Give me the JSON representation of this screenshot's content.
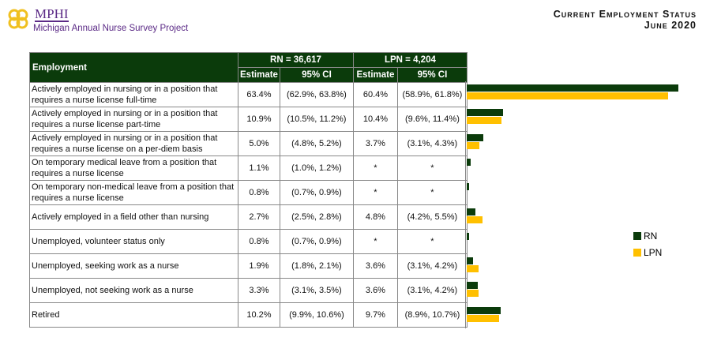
{
  "logo": {
    "name": "MPHI",
    "subtitle": "Michigan Annual Nurse Survey Project"
  },
  "title": {
    "line1": "Current Employment Status",
    "line2": "June 2020"
  },
  "table": {
    "col_employment": "Employment",
    "rn_header": "RN =  36,617",
    "lpn_header": "LPN = 4,204",
    "estimate": "Estimate",
    "ci": "95% CI"
  },
  "colors": {
    "RN": "#0b3b0b",
    "LPN": "#ffc000"
  },
  "chart_data": {
    "type": "bar",
    "orientation": "horizontal",
    "categories": [
      "Actively employed in nursing or in a position that requires a nurse license full-time",
      "Actively employed in nursing or in a position that requires a nurse license part-time",
      "Actively employed in nursing or in a position that requires a nurse license on a per-diem basis",
      "On temporary medical leave from a position that requires a nurse license",
      "On temporary non-medical leave from a position that requires a nurse license",
      "Actively employed in a field other than nursing",
      "Unemployed, volunteer status only",
      "Unemployed, seeking work as a nurse",
      "Unemployed, not seeking work as a nurse",
      "Retired"
    ],
    "series": [
      {
        "name": "RN",
        "values": [
          63.4,
          10.9,
          5.0,
          1.1,
          0.8,
          2.7,
          0.8,
          1.9,
          3.3,
          10.2
        ],
        "labels": [
          "63.4%",
          "10.9%",
          "5.0%",
          "1.1%",
          "0.8%",
          "2.7%",
          "0.8%",
          "1.9%",
          "3.3%",
          "10.2%"
        ],
        "ci": [
          "(62.9%, 63.8%)",
          "(10.5%, 11.2%)",
          "(4.8%, 5.2%)",
          "(1.0%, 1.2%)",
          "(0.7%, 0.9%)",
          "(2.5%, 2.8%)",
          "(0.7%, 0.9%)",
          "(1.8%, 2.1%)",
          "(3.1%, 3.5%)",
          "(9.9%, 10.6%)"
        ]
      },
      {
        "name": "LPN",
        "values": [
          60.4,
          10.4,
          3.7,
          null,
          null,
          4.8,
          null,
          3.6,
          3.6,
          9.7
        ],
        "labels": [
          "60.4%",
          "10.4%",
          "3.7%",
          "*",
          "*",
          "4.8%",
          "*",
          "3.6%",
          "3.6%",
          "9.7%"
        ],
        "ci": [
          "(58.9%, 61.8%)",
          "(9.6%, 11.4%)",
          "(3.1%, 4.3%)",
          "*",
          "*",
          "(4.2%, 5.5%)",
          "*",
          "(3.1%, 4.2%)",
          "(3.1%, 4.2%)",
          "(8.9%, 10.7%)"
        ]
      }
    ],
    "xlim": [
      0,
      70
    ],
    "legend": "right"
  }
}
